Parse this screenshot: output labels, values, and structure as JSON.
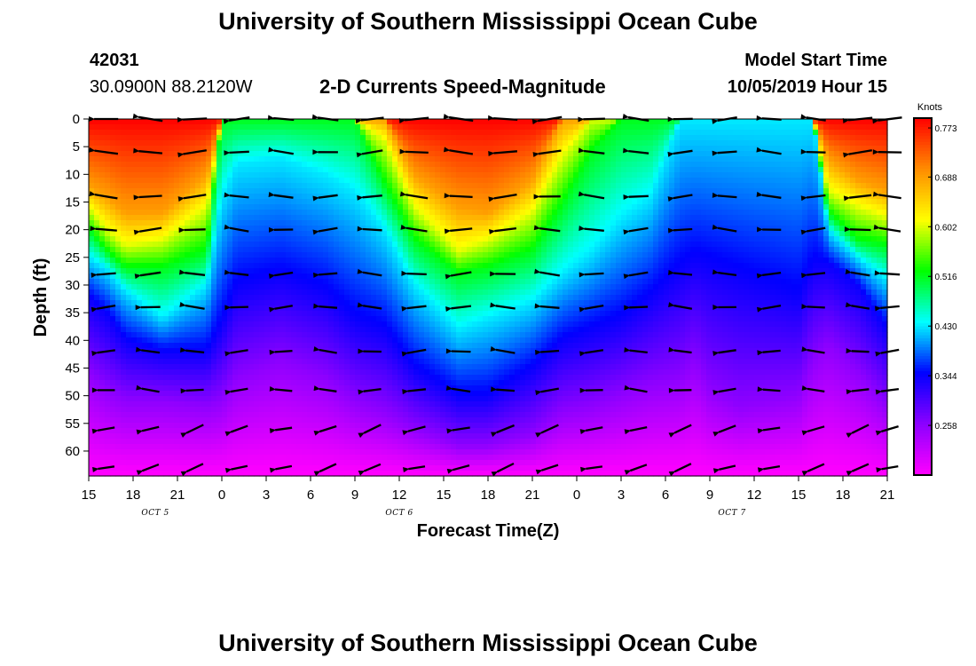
{
  "header": {
    "title_top": "University of Southern Mississippi Ocean Cube",
    "title_bottom": "University of Southern Mississippi Ocean Cube",
    "station_id": "42031",
    "location": "30.0900N 88.2120W",
    "plot_title": "2-D Currents Speed-Magnitude",
    "model_start_label": "Model Start Time",
    "model_start_value": "10/05/2019 Hour 15"
  },
  "colors": {
    "scale": [
      "#ff00ff",
      "#8c00ff",
      "#0000ff",
      "#00ffff",
      "#00ff00",
      "#ffff00",
      "#ff8c00",
      "#ff0000"
    ],
    "arrow": "#000000"
  },
  "chart_data": {
    "type": "heatmap",
    "title": "2-D Currents Speed-Magnitude",
    "xlabel": "Forecast Time(Z)",
    "ylabel": "Depth (ft)",
    "x_ticks": [
      "15",
      "18",
      "21",
      "0",
      "3",
      "6",
      "9",
      "12",
      "15",
      "18",
      "21",
      "0",
      "3",
      "6",
      "9",
      "12",
      "15",
      "18",
      "21"
    ],
    "x_range_hours": [
      0,
      54
    ],
    "date_labels": [
      {
        "text": "OCT 5",
        "hour": 4.5
      },
      {
        "text": "OCT 6",
        "hour": 21
      },
      {
        "text": "OCT 7",
        "hour": 43.5
      }
    ],
    "y_ticks": [
      "0",
      "5",
      "10",
      "15",
      "20",
      "25",
      "30",
      "35",
      "40",
      "45",
      "50",
      "55",
      "60"
    ],
    "ylim": [
      0,
      64.5
    ],
    "colorbar": {
      "unit": "Knots",
      "range": [
        0.172,
        0.79
      ],
      "ticks": [
        "0.773",
        "0.688",
        "0.602",
        "0.516",
        "0.430",
        "0.344",
        "0.258"
      ]
    },
    "profile_hours": [
      0,
      1.2,
      2.5,
      5,
      8,
      9,
      10,
      13,
      16,
      18,
      20,
      22,
      25,
      27,
      30,
      32,
      34,
      36,
      38,
      40,
      41,
      42,
      44,
      46,
      48,
      49,
      50,
      52,
      54
    ],
    "iso_depth_ft": {
      "0.688": [
        12,
        14,
        17,
        17,
        10,
        0,
        0,
        0,
        0,
        0,
        0,
        10,
        16,
        17,
        11,
        0,
        0,
        0,
        0,
        0,
        0,
        0,
        0,
        0,
        0,
        0,
        7,
        11,
        13
      ],
      "0.602": [
        16,
        20,
        23,
        22,
        16,
        0,
        0,
        0,
        0,
        0,
        4,
        16,
        24,
        22,
        17,
        7,
        0,
        0,
        0,
        0,
        0,
        0,
        0,
        0,
        0,
        0,
        13,
        16,
        18
      ],
      "0.516": [
        20,
        24,
        27,
        27,
        24,
        0,
        0,
        0,
        0,
        0,
        12,
        22,
        28,
        27,
        24,
        16,
        6,
        0,
        0,
        0,
        0,
        0,
        0,
        0,
        0,
        0,
        17,
        22,
        23
      ],
      "0.430": [
        25,
        27,
        31,
        36,
        30,
        14,
        8,
        7,
        10,
        13,
        20,
        30,
        38,
        36,
        33,
        28,
        24,
        18,
        14,
        0,
        0,
        0,
        0,
        0,
        0,
        0,
        20,
        25,
        29
      ],
      "0.344": [
        32,
        35,
        40,
        42,
        42,
        37,
        30,
        28,
        31,
        36,
        38,
        45,
        50,
        50,
        45,
        40,
        38,
        36,
        32,
        27,
        25,
        26,
        28,
        30,
        32,
        26,
        26,
        30,
        38
      ],
      "0.258": [
        46,
        49,
        51,
        51,
        52,
        51,
        47,
        44,
        47,
        51,
        53,
        56,
        59,
        59,
        57,
        53,
        52,
        50,
        48,
        47,
        44,
        49,
        52,
        51,
        50,
        44,
        41,
        46,
        52
      ]
    },
    "vector_field": {
      "times_hours": [
        1,
        4,
        7,
        10,
        13,
        16,
        19,
        22,
        25,
        28,
        31,
        34,
        37,
        40,
        43,
        46,
        49,
        52,
        54
      ],
      "depths_ft": [
        0,
        6,
        14,
        20,
        28,
        34,
        42,
        49,
        56,
        63
      ],
      "direction": "mostly westward (arrow heads pointing left)"
    }
  }
}
